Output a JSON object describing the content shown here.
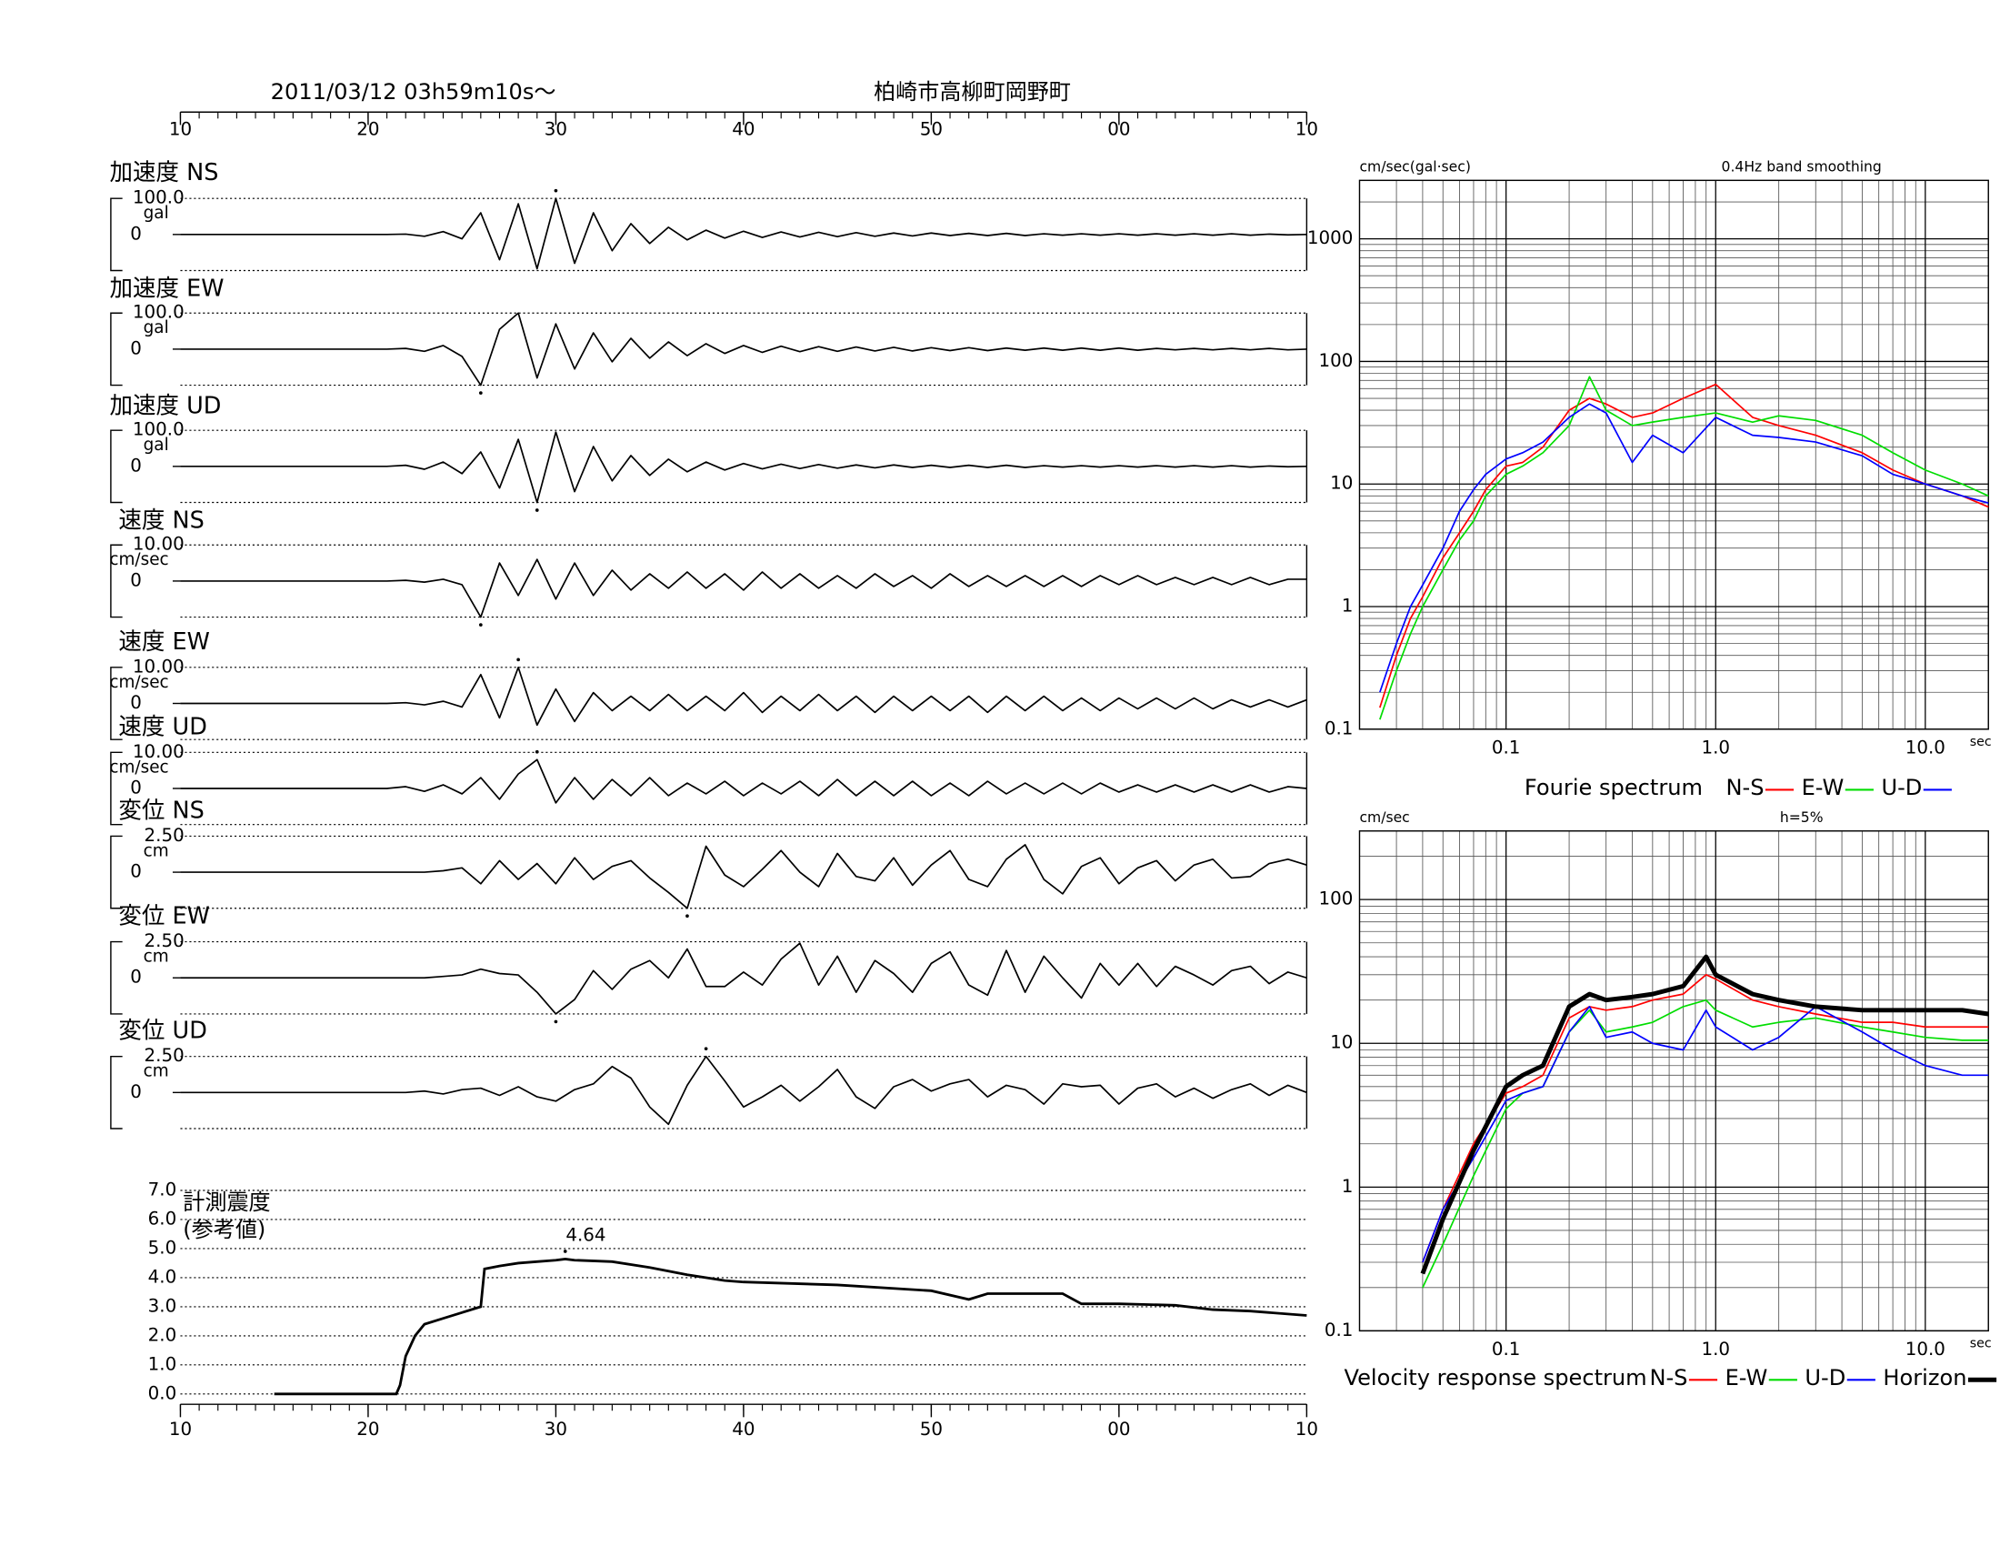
{
  "chart_data": [
    {
      "type": "waveform",
      "title": "2011/03/12  03h59m10s～",
      "location": "柏崎市高柳町岡野町",
      "xlim": [
        10,
        70
      ],
      "xticks": [
        10,
        20,
        30,
        40,
        50,
        {
          "value": 60,
          "label": "00"
        },
        {
          "value": 70,
          "label": "10"
        }
      ],
      "x": [
        10,
        20,
        21,
        22,
        23,
        24,
        25,
        26,
        27,
        28,
        29,
        30,
        31,
        32,
        33,
        34,
        35,
        36,
        37,
        38,
        39,
        40,
        41,
        42,
        43,
        44,
        45,
        46,
        47,
        48,
        49,
        50,
        51,
        52,
        53,
        54,
        55,
        56,
        57,
        58,
        59,
        60,
        61,
        62,
        63,
        64,
        65,
        66,
        67,
        68,
        69,
        70
      ],
      "panels": [
        {
          "label": "加速度 NS",
          "unit": "gal",
          "ylim": [
            -100,
            100
          ],
          "yticks": [
            0,
            {
              "value": 100,
              "label": "100.0"
            }
          ],
          "values": [
            0,
            0,
            0,
            1,
            -5,
            8,
            -12,
            60,
            -70,
            85,
            -95,
            100,
            -80,
            60,
            -45,
            30,
            -25,
            20,
            -15,
            12,
            -10,
            9,
            -8,
            7,
            -7,
            6,
            -6,
            5,
            -5,
            4,
            -4,
            4,
            -3,
            3,
            -3,
            3,
            -3,
            2,
            -2,
            2,
            -2,
            2,
            -2,
            2,
            -2,
            2,
            -2,
            2,
            -2,
            1,
            -1,
            0
          ]
        },
        {
          "label": "加速度 EW",
          "unit": "gal",
          "ylim": [
            -100,
            100
          ],
          "yticks": [
            0,
            {
              "value": 100,
              "label": "100.0"
            }
          ],
          "values": [
            0,
            0,
            0,
            2,
            -6,
            10,
            -20,
            -100,
            55,
            100,
            -80,
            70,
            -55,
            45,
            -35,
            30,
            -25,
            20,
            -18,
            15,
            -12,
            10,
            -9,
            8,
            -7,
            7,
            -6,
            6,
            -5,
            5,
            -5,
            4,
            -4,
            4,
            -4,
            3,
            -3,
            3,
            -3,
            3,
            -3,
            3,
            -3,
            2,
            -2,
            2,
            -2,
            2,
            -2,
            2,
            -2,
            0
          ]
        },
        {
          "label": "加速度 UD",
          "unit": "gal",
          "ylim": [
            -100,
            100
          ],
          "yticks": [
            0,
            {
              "value": 100,
              "label": "100.0"
            }
          ],
          "values": [
            0,
            0,
            0,
            3,
            -8,
            12,
            -20,
            40,
            -60,
            75,
            -100,
            95,
            -70,
            55,
            -40,
            30,
            -25,
            20,
            -15,
            12,
            -10,
            8,
            -7,
            6,
            -6,
            5,
            -5,
            4,
            -4,
            4,
            -3,
            3,
            -3,
            3,
            -3,
            3,
            -3,
            2,
            -2,
            2,
            -2,
            2,
            -2,
            2,
            -2,
            2,
            -2,
            2,
            -2,
            1,
            -1,
            0
          ]
        },
        {
          "label": "速度 NS",
          "unit": "cm/sec",
          "ylim": [
            -10,
            10
          ],
          "yticks": [
            0,
            {
              "value": 10,
              "label": "10.00"
            }
          ],
          "values": [
            0,
            0,
            0,
            0.2,
            -0.3,
            0.5,
            -1,
            -10,
            5,
            -4,
            6,
            -5,
            5,
            -4,
            3,
            -2.5,
            2,
            -2,
            2.5,
            -2,
            2,
            -2.5,
            2.5,
            -2,
            2,
            -2,
            1.5,
            -2,
            2,
            -1.5,
            1.5,
            -2,
            2,
            -1.5,
            1.5,
            -1.5,
            1.5,
            -1.5,
            1.5,
            -1.5,
            1.5,
            -1,
            1.5,
            -1,
            1,
            -1,
            1,
            -1,
            1,
            -1,
            0.5,
            0.5
          ]
        },
        {
          "label": "速度 EW",
          "unit": "cm/sec",
          "ylim": [
            -10,
            10
          ],
          "yticks": [
            0,
            {
              "value": 10,
              "label": "10.00"
            }
          ],
          "values": [
            0,
            0,
            0,
            0.2,
            -0.4,
            0.6,
            -1,
            8,
            -4,
            10,
            -6,
            4,
            -5,
            3,
            -2,
            2,
            -2,
            2.5,
            -2,
            2,
            -2,
            3,
            -2.5,
            2,
            -2,
            2.5,
            -2,
            2,
            -2.5,
            2,
            -2,
            2,
            -2,
            2,
            -2.5,
            2,
            -2,
            2,
            -2,
            1.5,
            -2,
            1.5,
            -1.5,
            1.5,
            -1.5,
            1.5,
            -1.5,
            1,
            -1,
            1,
            -1,
            1
          ]
        },
        {
          "label": "速度 UD",
          "unit": "cm/sec",
          "ylim": [
            -10,
            10
          ],
          "yticks": [
            0,
            {
              "value": 10,
              "label": "10.00"
            }
          ],
          "values": [
            0,
            0,
            0,
            0.5,
            -0.8,
            1,
            -1.5,
            3,
            -3,
            4,
            8,
            -4,
            3,
            -3,
            2.5,
            -2,
            3,
            -2,
            1.5,
            -1.5,
            2,
            -2,
            1.5,
            -1.5,
            2,
            -2,
            2.5,
            -2,
            2,
            -2,
            2,
            -2,
            1.5,
            -2,
            2,
            -1.5,
            1.5,
            -1.5,
            1.5,
            -1.5,
            1.5,
            -1,
            1,
            -1,
            1,
            -1,
            1,
            -1,
            1,
            -1,
            0.5,
            0
          ]
        },
        {
          "label": "変位 NS",
          "unit": "cm",
          "ylim": [
            -2.5,
            2.5
          ],
          "yticks": [
            0,
            {
              "value": 2.5,
              "label": "2.50"
            }
          ],
          "values": [
            0,
            0,
            0,
            0,
            0,
            0.1,
            0.3,
            -0.8,
            0.8,
            -0.5,
            0.6,
            -0.8,
            1,
            -0.5,
            0.4,
            0.8,
            -0.4,
            -1.4,
            -2.5,
            1.8,
            -0.2,
            -1,
            0.2,
            1.5,
            0,
            -1,
            1.3,
            -0.3,
            -0.6,
            1.0,
            -0.9,
            0.5,
            1.5,
            -0.5,
            -1.0,
            0.9,
            1.9,
            -0.5,
            -1.5,
            0.4,
            1.0,
            -0.8,
            0.3,
            0.8,
            -0.6,
            0.5,
            0.9,
            -0.4,
            -0.3,
            0.6,
            0.9,
            0.5
          ]
        },
        {
          "label": "変位 EW",
          "unit": "cm",
          "ylim": [
            -2.5,
            2.5
          ],
          "yticks": [
            0,
            {
              "value": 2.5,
              "label": "2.50"
            }
          ],
          "values": [
            0,
            0,
            0,
            0,
            0,
            0.1,
            0.2,
            0.6,
            0.3,
            0.2,
            -1,
            -2.5,
            -1.5,
            0.5,
            -0.8,
            0.6,
            1.2,
            0,
            2.0,
            -0.6,
            -0.6,
            0.4,
            -0.5,
            1.3,
            2.4,
            -0.5,
            1.5,
            -1.0,
            1.2,
            0.3,
            -1.0,
            1.0,
            1.8,
            -0.5,
            -1.2,
            1.9,
            -1.0,
            1.5,
            0,
            -1.4,
            1.0,
            -0.5,
            1.0,
            -0.6,
            0.8,
            0.2,
            -0.5,
            0.5,
            0.8,
            -0.4,
            0.4,
            0
          ]
        },
        {
          "label": "変位 UD",
          "unit": "cm",
          "ylim": [
            -2.5,
            2.5
          ],
          "yticks": [
            0,
            {
              "value": 2.5,
              "label": "2.50"
            }
          ],
          "values": [
            0,
            0,
            0,
            0,
            0.1,
            -0.1,
            0.2,
            0.3,
            -0.2,
            0.4,
            -0.3,
            -0.6,
            0.2,
            0.6,
            1.8,
            1.0,
            -1.0,
            -2.2,
            0.5,
            2.5,
            0.8,
            -1.0,
            -0.3,
            0.5,
            -0.6,
            0.4,
            1.6,
            -0.3,
            -1.1,
            0.4,
            0.9,
            0.1,
            0.6,
            0.9,
            -0.3,
            0.5,
            0.2,
            -0.8,
            0.6,
            0.4,
            0.5,
            -0.8,
            0.3,
            0.6,
            -0.3,
            0.3,
            -0.4,
            0.2,
            0.6,
            -0.2,
            0.5,
            0
          ]
        }
      ]
    },
    {
      "type": "line",
      "title": "計測震度",
      "subtitle": "(参考値)",
      "xlim": [
        10,
        70
      ],
      "xticks": [
        10,
        20,
        30,
        40,
        50,
        {
          "value": 60,
          "label": "00"
        },
        {
          "value": 70,
          "label": "10"
        }
      ],
      "ylim": [
        0,
        7
      ],
      "yticks": [
        {
          "value": 0,
          "label": "0.0"
        },
        {
          "value": 1,
          "label": "1.0"
        },
        {
          "value": 2,
          "label": "2.0"
        },
        {
          "value": 3,
          "label": "3.0"
        },
        {
          "value": 4,
          "label": "4.0"
        },
        {
          "value": 5,
          "label": "5.0"
        },
        {
          "value": 6,
          "label": "6.0"
        },
        {
          "value": 7,
          "label": "7.0"
        }
      ],
      "x": [
        15,
        21.5,
        21.7,
        22,
        22.5,
        23,
        24,
        25,
        26,
        26.2,
        27,
        28,
        29,
        30,
        30.5,
        31,
        33,
        35,
        37,
        39,
        40,
        45,
        50,
        52,
        53,
        55,
        57,
        58,
        60,
        63,
        65,
        67,
        70
      ],
      "values": [
        0,
        0,
        0.3,
        1.3,
        2.0,
        2.4,
        2.6,
        2.8,
        3.0,
        4.3,
        4.4,
        4.5,
        4.55,
        4.6,
        4.64,
        4.6,
        4.55,
        4.35,
        4.1,
        3.9,
        3.85,
        3.75,
        3.55,
        3.25,
        3.45,
        3.45,
        3.45,
        3.1,
        3.1,
        3.05,
        2.9,
        2.85,
        2.7
      ],
      "annotations": [
        {
          "x": 30.5,
          "text": "4.64"
        }
      ]
    },
    {
      "type": "loglog",
      "title": "Fourie spectrum",
      "ylabel": "cm/sec(gal·sec)",
      "note": "0.4Hz band smoothing",
      "xlabel": "sec",
      "grid": true,
      "xlim": [
        0.02,
        20
      ],
      "xticks": [
        0.1,
        {
          "value": 1,
          "label": "1.0"
        },
        {
          "value": 10,
          "label": "10.0"
        }
      ],
      "ylim": [
        0.1,
        3000
      ],
      "yticks": [
        0.1,
        1,
        10,
        100,
        1000
      ],
      "x": [
        0.025,
        0.03,
        0.035,
        0.04,
        0.05,
        0.06,
        0.07,
        0.08,
        0.1,
        0.12,
        0.15,
        0.2,
        0.25,
        0.3,
        0.4,
        0.5,
        0.7,
        1,
        1.5,
        2,
        3,
        5,
        7,
        10,
        15,
        20
      ],
      "series": [
        {
          "name": "N-S",
          "color": "#ff0000",
          "values": [
            0.15,
            0.4,
            0.8,
            1.2,
            2.5,
            4,
            6,
            9,
            14,
            15,
            20,
            40,
            50,
            45,
            35,
            38,
            50,
            65,
            35,
            30,
            25,
            18,
            13,
            10,
            8,
            6.5
          ]
        },
        {
          "name": "E-W",
          "color": "#00dd00",
          "values": [
            0.12,
            0.3,
            0.6,
            1.0,
            2,
            3.5,
            5,
            8,
            12,
            14,
            18,
            30,
            75,
            40,
            30,
            32,
            35,
            38,
            32,
            36,
            33,
            25,
            18,
            13,
            10,
            8
          ]
        },
        {
          "name": "U-D",
          "color": "#0000ff",
          "values": [
            0.2,
            0.5,
            1.0,
            1.5,
            3,
            6,
            9,
            12,
            16,
            18,
            22,
            35,
            45,
            38,
            15,
            25,
            18,
            35,
            25,
            24,
            22,
            17,
            12,
            10,
            8,
            7
          ]
        }
      ]
    },
    {
      "type": "loglog",
      "title": "Velocity response spectrum",
      "ylabel": "cm/sec",
      "note": "h=5%",
      "xlabel": "sec",
      "grid": true,
      "xlim": [
        0.02,
        20
      ],
      "xticks": [
        0.1,
        {
          "value": 1,
          "label": "1.0"
        },
        {
          "value": 10,
          "label": "10.0"
        }
      ],
      "ylim": [
        0.1,
        300
      ],
      "yticks": [
        0.1,
        1,
        10,
        100
      ],
      "x": [
        0.04,
        0.05,
        0.07,
        0.1,
        0.12,
        0.15,
        0.2,
        0.25,
        0.3,
        0.4,
        0.5,
        0.7,
        0.9,
        1,
        1.5,
        2,
        3,
        5,
        7,
        10,
        15,
        20
      ],
      "series": [
        {
          "name": "N-S",
          "color": "#ff0000",
          "values": [
            0.3,
            0.7,
            2,
            4.5,
            5,
            6,
            15,
            18,
            17,
            18,
            20,
            22,
            30,
            28,
            20,
            18,
            16,
            14,
            14,
            13,
            13,
            13
          ]
        },
        {
          "name": "E-W",
          "color": "#00dd00",
          "values": [
            0.2,
            0.4,
            1.2,
            3.5,
            4.5,
            5,
            12,
            17,
            12,
            13,
            14,
            18,
            20,
            17,
            13,
            14,
            15,
            13,
            12,
            11,
            10.5,
            10.5
          ]
        },
        {
          "name": "U-D",
          "color": "#0000ff",
          "values": [
            0.3,
            0.7,
            1.6,
            4,
            4.5,
            5,
            12,
            18,
            11,
            12,
            10,
            9,
            17,
            13,
            9,
            11,
            18,
            12,
            9,
            7,
            6,
            6
          ]
        },
        {
          "name": "Horizon",
          "color": "#000000",
          "bold": true,
          "values": [
            0.25,
            0.6,
            1.8,
            5,
            6,
            7,
            18,
            22,
            20,
            21,
            22,
            25,
            40,
            30,
            22,
            20,
            18,
            17,
            17,
            17,
            17,
            16
          ]
        }
      ]
    }
  ]
}
